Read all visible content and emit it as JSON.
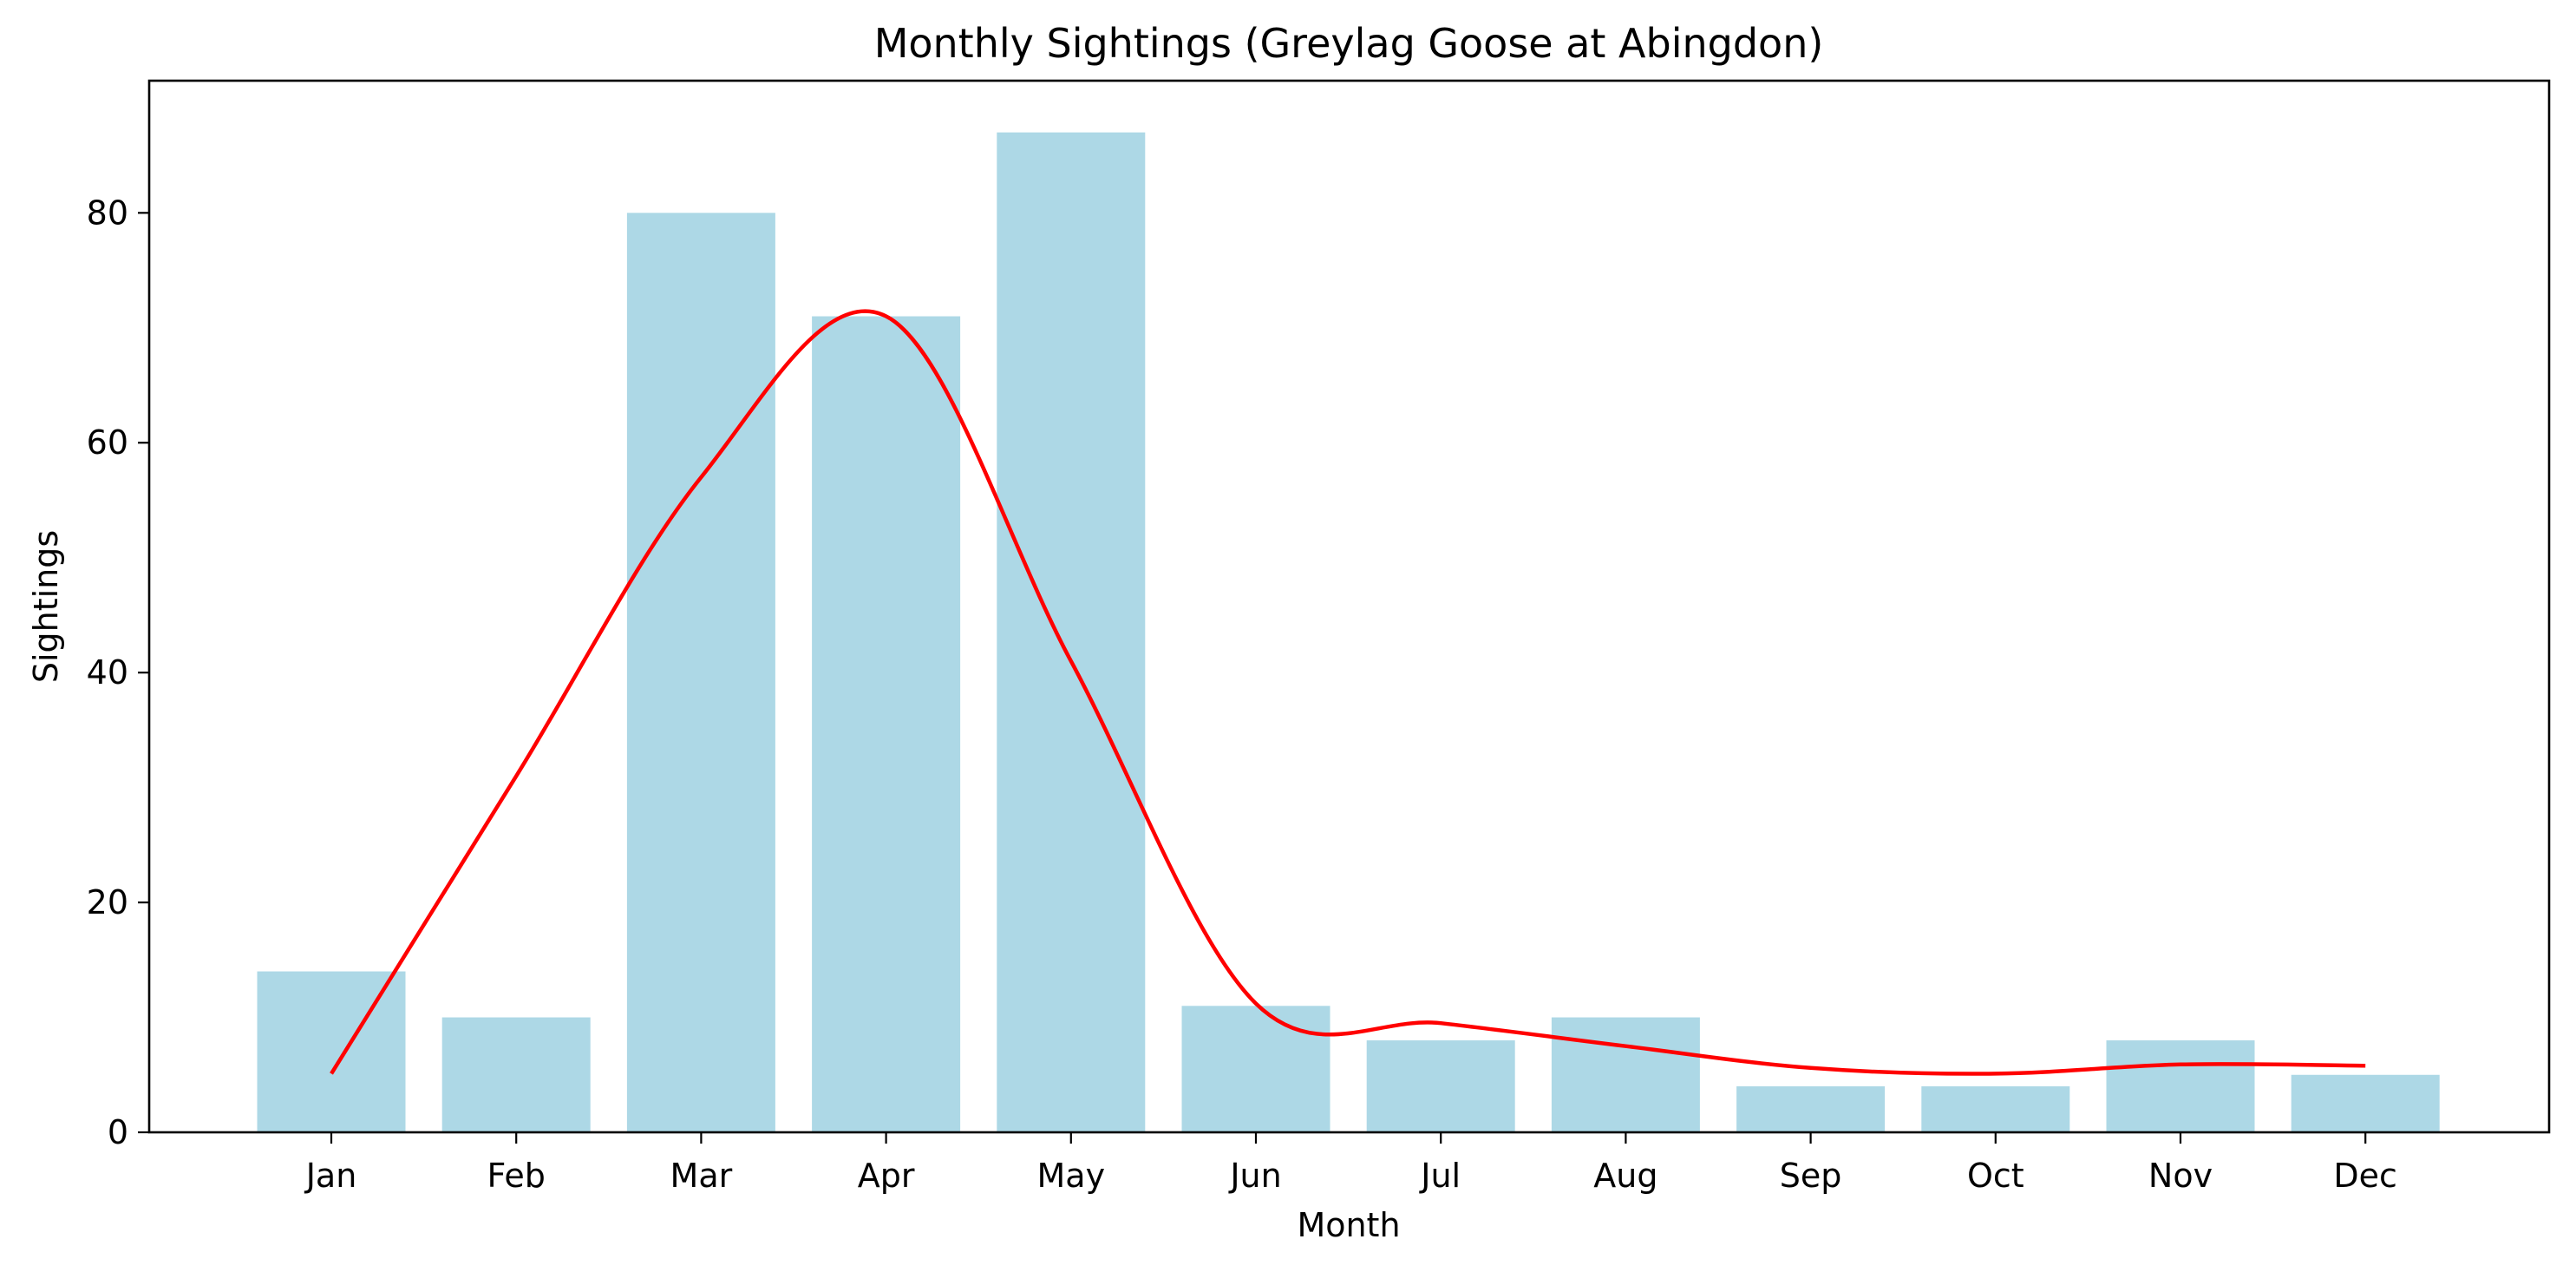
{
  "chart_data": {
    "type": "bar",
    "title": "Monthly Sightings (Greylag Goose at Abingdon)",
    "xlabel": "Month",
    "ylabel": "Sightings",
    "categories": [
      "Jan",
      "Feb",
      "Mar",
      "Apr",
      "May",
      "Jun",
      "Jul",
      "Aug",
      "Sep",
      "Oct",
      "Nov",
      "Dec"
    ],
    "values": [
      14,
      10,
      80,
      71,
      87,
      11,
      8,
      10,
      4,
      4,
      8,
      5
    ],
    "trend": {
      "type": "line",
      "smooth": true,
      "values": [
        5.1,
        31,
        57,
        71,
        41,
        11.2,
        9.5,
        7.5,
        5.6,
        5.1,
        5.9,
        5.8
      ]
    },
    "ylim": [
      0,
      91.5
    ],
    "yticks": [
      0,
      20,
      40,
      60,
      80
    ],
    "grid": false,
    "legend": "none",
    "colors": {
      "bar": "#add8e6",
      "line": "#ff0000",
      "axis": "#000000"
    }
  }
}
